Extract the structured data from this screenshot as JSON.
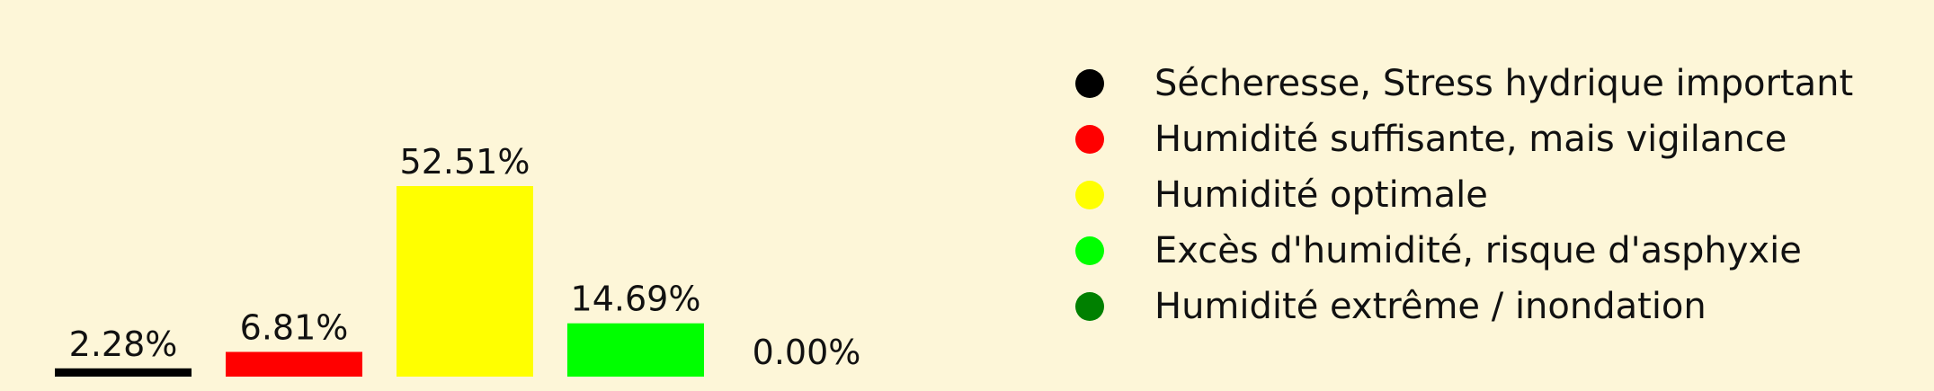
{
  "chart_data": {
    "type": "bar",
    "categories": [
      "Sécheresse, Stress hydrique important",
      "Humidité suffisante, mais vigilance",
      "Humidité optimale",
      "Excès d'humidité, risque d'asphyxie",
      "Humidité extrême / inondation"
    ],
    "values": [
      2.28,
      6.81,
      52.51,
      14.69,
      0.0
    ],
    "value_labels": [
      "2.28%",
      "6.81%",
      "52.51%",
      "14.69%",
      "0.00%"
    ],
    "colors": [
      "#000000",
      "#ff0000",
      "#ffff00",
      "#00ff00",
      "#008000"
    ],
    "unit": "%",
    "grid": false,
    "legend_position": "right",
    "background": "#fdf6d8"
  }
}
